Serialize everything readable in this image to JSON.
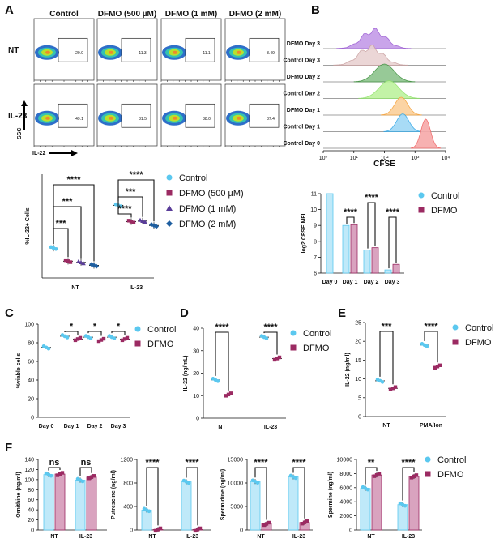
{
  "colors": {
    "control": "#5bc8ef",
    "dfmo": "#9b2a62",
    "d500": "#9b2a62",
    "d1": "#5a3d99",
    "d2": "#1f5fa0"
  },
  "panel_labels": [
    "A",
    "B",
    "C",
    "D",
    "E",
    "F"
  ],
  "flow": {
    "col_headers": [
      "Control",
      "DFMO (500 µM)",
      "DFMO (1 mM)",
      "DFMO (2 mM)"
    ],
    "row_labels": [
      "NT",
      "IL-23"
    ],
    "y_axis": "SSC",
    "x_axis": "IL-22",
    "gate_values": [
      [
        "20.0",
        "11.3",
        "11.1",
        "8.49"
      ],
      [
        "49.1",
        "31.5",
        "38.0",
        "37.4"
      ]
    ]
  },
  "chart_data": [
    {
      "id": "A",
      "type": "bar",
      "ylabel": "%IL-22+ Cells",
      "categories": [
        "NT",
        "IL-23"
      ],
      "series": [
        {
          "name": "Control",
          "values": [
            20.2,
            49.0
          ]
        },
        {
          "name": "DFMO (500 µM)",
          "values": [
            11.3,
            38.0
          ]
        },
        {
          "name": "DFMO (1 mM)",
          "values": [
            10.5,
            38.4
          ]
        },
        {
          "name": "DFMO (2 mM)",
          "values": [
            8.5,
            35.4
          ]
        }
      ],
      "ylim": [
        0,
        70
      ],
      "significance": [
        {
          "group": "NT",
          "compare": "DFMO (500 µM)",
          "label": "***"
        },
        {
          "group": "NT",
          "compare": "DFMO (1 mM)",
          "label": "***"
        },
        {
          "group": "NT",
          "compare": "DFMO (2 mM)",
          "label": "****"
        },
        {
          "group": "IL-23",
          "compare": "DFMO (500 µM)",
          "label": "****"
        },
        {
          "group": "IL-23",
          "compare": "DFMO (1 mM)",
          "label": "***"
        },
        {
          "group": "IL-23",
          "compare": "DFMO (2 mM)",
          "label": "****"
        }
      ]
    },
    {
      "id": "B-hist",
      "type": "histogram",
      "xlabel": "CFSE",
      "x_ticks": [
        "10⁰",
        "10¹",
        "10²",
        "10³",
        "10⁴"
      ],
      "tracks": [
        "DFMO Day 3",
        "Control Day 3",
        "DFMO Day 2",
        "Control Day 2",
        "DFMO Day 1",
        "Control Day 1",
        "Control Day 0"
      ]
    },
    {
      "id": "B-bar",
      "type": "bar",
      "ylabel": "log2 CFSE MFI",
      "categories": [
        "Day 0",
        "Day 1",
        "Day 2",
        "Day 3"
      ],
      "series": [
        {
          "name": "Control",
          "values": [
            11.0,
            9.0,
            7.45,
            6.2
          ]
        },
        {
          "name": "DFMO",
          "values": [
            null,
            9.05,
            7.6,
            6.55
          ]
        }
      ],
      "ylim": [
        6,
        11
      ],
      "y_ticks": [
        6,
        7,
        8,
        9,
        10,
        11
      ],
      "significance": [
        "****",
        "****",
        "****"
      ]
    },
    {
      "id": "C",
      "type": "scatter",
      "ylabel": "%viable cells",
      "categories": [
        "Day 0",
        "Day 1",
        "Day 2",
        "Day 3"
      ],
      "series": [
        {
          "name": "Control",
          "values": [
            75,
            87,
            86,
            86
          ]
        },
        {
          "name": "DFMO",
          "values": [
            null,
            84,
            83,
            84
          ]
        }
      ],
      "ylim": [
        0,
        100
      ],
      "y_ticks": [
        0,
        20,
        40,
        60,
        80,
        100
      ],
      "significance": [
        "*",
        "*",
        "*"
      ]
    },
    {
      "id": "D",
      "type": "scatter",
      "ylabel": "IL-22 (ng/mL)",
      "categories": [
        "NT",
        "IL-23"
      ],
      "series": [
        {
          "name": "Control",
          "values": [
            17,
            36
          ]
        },
        {
          "name": "DFMO",
          "values": [
            10.5,
            26.5
          ]
        }
      ],
      "ylim": [
        0,
        40
      ],
      "y_ticks": [
        0,
        10,
        20,
        30,
        40
      ],
      "significance": [
        "****",
        "****"
      ]
    },
    {
      "id": "E",
      "type": "scatter",
      "ylabel": "IL-22 (ng/ml)",
      "categories": [
        "NT",
        "PMA/Ion"
      ],
      "series": [
        {
          "name": "Control",
          "values": [
            9.5,
            19
          ]
        },
        {
          "name": "DFMO",
          "values": [
            7.5,
            13.3
          ]
        }
      ],
      "ylim": [
        0,
        25
      ],
      "y_ticks": [
        0,
        5,
        10,
        15,
        20,
        25
      ],
      "significance": [
        "***",
        "****"
      ]
    },
    {
      "id": "F-orn",
      "type": "bar",
      "ylabel": "Ornithine (ng/ml)",
      "categories": [
        "NT",
        "IL-23"
      ],
      "series": [
        {
          "name": "Control",
          "values": [
            110,
            99
          ]
        },
        {
          "name": "DFMO",
          "values": [
            111,
            105
          ]
        }
      ],
      "ylim": [
        0,
        140
      ],
      "y_ticks": [
        0,
        20,
        40,
        60,
        80,
        100,
        120,
        140
      ],
      "significance": [
        "ns",
        "ns"
      ]
    },
    {
      "id": "F-put",
      "type": "bar",
      "ylabel": "Putrescine (ng/ml)",
      "categories": [
        "NT",
        "IL-23"
      ],
      "series": [
        {
          "name": "Control",
          "values": [
            340,
            820
          ]
        },
        {
          "name": "DFMO",
          "values": [
            8,
            8
          ]
        }
      ],
      "ylim": [
        0,
        1200
      ],
      "y_ticks": [
        0,
        400,
        800,
        1200
      ],
      "significance": [
        "****",
        "****"
      ]
    },
    {
      "id": "F-spd",
      "type": "bar",
      "ylabel": "Spermidine (ng/ml)",
      "categories": [
        "NT",
        "IL-23"
      ],
      "series": [
        {
          "name": "Control",
          "values": [
            10300,
            11300
          ]
        },
        {
          "name": "DFMO",
          "values": [
            1300,
            1600
          ]
        }
      ],
      "ylim": [
        0,
        15000
      ],
      "y_ticks": [
        0,
        5000,
        10000,
        15000
      ],
      "significance": [
        "****",
        "****"
      ]
    },
    {
      "id": "F-spm",
      "type": "bar",
      "ylabel": "Spermine (ng/ml)",
      "categories": [
        "NT",
        "IL-23"
      ],
      "series": [
        {
          "name": "Control",
          "values": [
            5900,
            3600
          ]
        },
        {
          "name": "DFMO",
          "values": [
            7800,
            7600
          ]
        }
      ],
      "ylim": [
        0,
        10000
      ],
      "y_ticks": [
        0,
        2000,
        4000,
        6000,
        8000,
        10000
      ],
      "significance": [
        "**",
        "****"
      ]
    }
  ],
  "legends": {
    "A": [
      "Control",
      "DFMO (500 µM)",
      "DFMO (1 mM)",
      "DFMO (2 mM)"
    ],
    "two": [
      "Control",
      "DFMO"
    ]
  }
}
